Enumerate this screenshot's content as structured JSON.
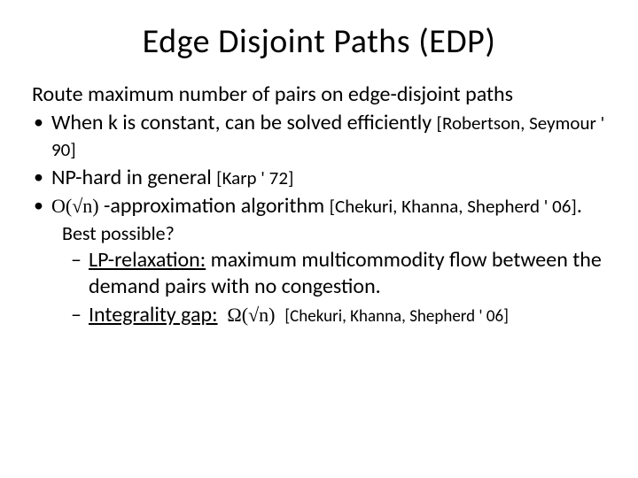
{
  "title": "Edge Disjoint Paths (EDP)",
  "intro": "Route maximum number of pairs on edge-disjoint paths",
  "bullets": [
    {
      "text": "When k is constant, can be solved efficiently ",
      "ref": "[Robertson, Seymour ' 90]"
    },
    {
      "text": "NP-hard in general ",
      "ref": "[Karp ' 72]"
    },
    {
      "math": "O(√n)",
      "text": " -approximation algorithm ",
      "ref": "[Chekuri, Khanna, Shepherd ' 06]",
      "trailing": "."
    }
  ],
  "best": "Best possible?",
  "sub": [
    {
      "label": "LP-relaxation:",
      "text": " maximum multicommodity flow between the demand pairs with no congestion."
    },
    {
      "label": "Integrality gap:",
      "math": "Ω(√n)",
      "ref": "[Chekuri, Khanna, Shepherd ' 06]"
    }
  ],
  "colors": {
    "background": "#ffffff",
    "text": "#000000"
  }
}
